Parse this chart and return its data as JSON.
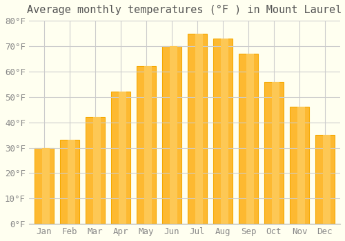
{
  "title": "Average monthly temperatures (°F ) in Mount Laurel",
  "months": [
    "Jan",
    "Feb",
    "Mar",
    "Apr",
    "May",
    "Jun",
    "Jul",
    "Aug",
    "Sep",
    "Oct",
    "Nov",
    "Dec"
  ],
  "values": [
    30,
    33,
    42,
    52,
    62,
    70,
    75,
    73,
    67,
    56,
    46,
    35
  ],
  "bar_color": "#FDB931",
  "bar_edge_color": "#F5A800",
  "background_color": "#FFFFF0",
  "grid_color": "#CCCCCC",
  "ylim": [
    0,
    80
  ],
  "yticks": [
    0,
    10,
    20,
    30,
    40,
    50,
    60,
    70,
    80
  ],
  "ytick_labels": [
    "0°F",
    "10°F",
    "20°F",
    "30°F",
    "40°F",
    "50°F",
    "60°F",
    "70°F",
    "80°F"
  ],
  "font_family": "monospace",
  "title_fontsize": 11,
  "tick_fontsize": 9
}
